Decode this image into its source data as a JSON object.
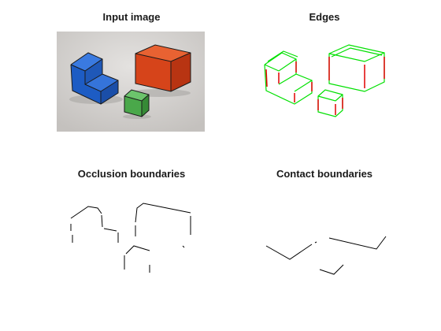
{
  "panels": [
    {
      "id": "input",
      "title": "Input image"
    },
    {
      "id": "edges",
      "title": "Edges"
    },
    {
      "id": "occlusion",
      "title": "Occlusion boundaries"
    },
    {
      "id": "contact",
      "title": "Contact boundaries"
    }
  ],
  "colors": {
    "background": "#ffffff",
    "photo_background": "#d6d4d2",
    "blue_block": "#1f5fc7",
    "orange_block": "#d9461c",
    "green_block": "#4caa4c",
    "edge_green": "#00e000",
    "edge_red": "#e00000",
    "boundary_black": "#000000"
  }
}
